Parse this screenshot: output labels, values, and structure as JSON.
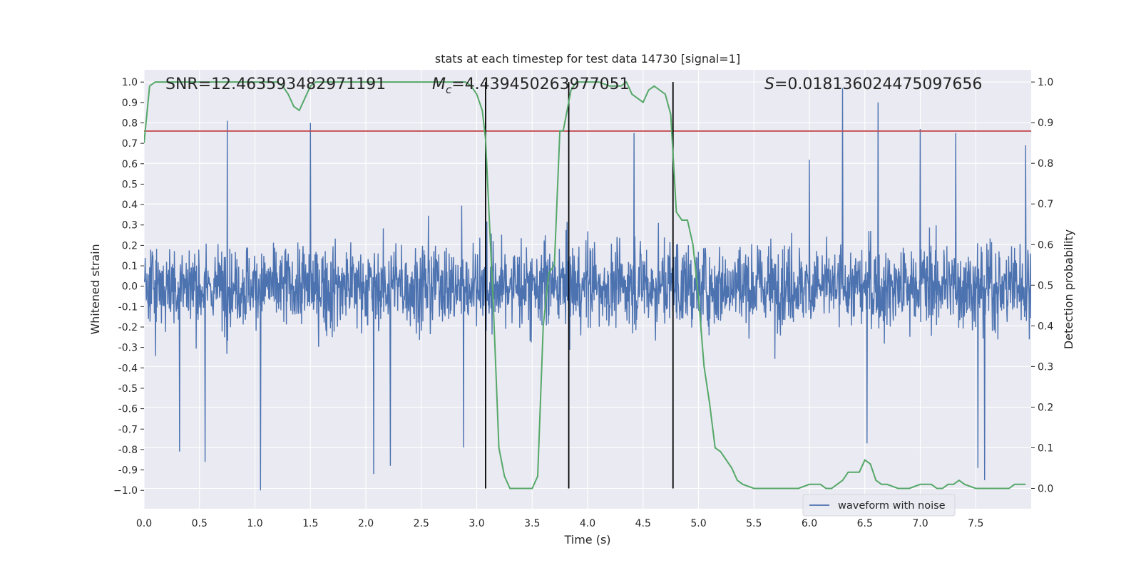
{
  "chart_data": {
    "type": "line",
    "title": "stats at each timestep for test data 14730 [signal=1]",
    "xlabel": "Time (s)",
    "ylabel_left": "Whitened strain",
    "ylabel_right": "Detection probability",
    "xlim": [
      0.0,
      8.0
    ],
    "ylim_left": [
      -1.09,
      1.06
    ],
    "ylim_right": [
      -0.05,
      1.03
    ],
    "x_ticks": [
      "0.0",
      "0.5",
      "1.0",
      "1.5",
      "2.0",
      "2.5",
      "3.0",
      "3.5",
      "4.0",
      "4.5",
      "5.0",
      "5.5",
      "6.0",
      "6.5",
      "7.0",
      "7.5"
    ],
    "x_tick_values": [
      0.0,
      0.5,
      1.0,
      1.5,
      2.0,
      2.5,
      3.0,
      3.5,
      4.0,
      4.5,
      5.0,
      5.5,
      6.0,
      6.5,
      7.0,
      7.5
    ],
    "y_left_ticks": [
      "1.0",
      "0.9",
      "0.8",
      "0.7",
      "0.6",
      "0.5",
      "0.4",
      "0.3",
      "0.2",
      "0.1",
      "0.0",
      "-0.1",
      "-0.2",
      "-0.3",
      "-0.4",
      "-0.5",
      "-0.6",
      "-0.7",
      "-0.8",
      "-0.9",
      "−1.0"
    ],
    "y_left_tick_values": [
      1.0,
      0.9,
      0.8,
      0.7,
      0.6,
      0.5,
      0.4,
      0.3,
      0.2,
      0.1,
      0.0,
      -0.1,
      -0.2,
      -0.3,
      -0.4,
      -0.5,
      -0.6,
      -0.7,
      -0.8,
      -0.9,
      -1.0
    ],
    "y_right_ticks": [
      "1.0",
      "0.9",
      "0.8",
      "0.7",
      "0.6",
      "0.5",
      "0.4",
      "0.3",
      "0.2",
      "0.1",
      "0.0"
    ],
    "y_right_tick_values": [
      1.0,
      0.9,
      0.8,
      0.7,
      0.6,
      0.5,
      0.4,
      0.3,
      0.2,
      0.1,
      0.0
    ],
    "grid": true,
    "legend_position": "lower-right",
    "annotations": {
      "snr": "SNR=12.463593482971191",
      "mc_symbol": "M",
      "mc_sub": "c",
      "mc_value": "=4.439450263977051",
      "s_symbol": "S",
      "s_value": "=0.018136024475097656"
    },
    "colors": {
      "waveform": "#4c72b0",
      "probability": "#55a868",
      "threshold": "#c44e52",
      "markers": "#000000",
      "plot_bg": "#eaeaf2",
      "grid": "#ffffff"
    },
    "series": [
      {
        "name": "waveform with noise",
        "axis": "left",
        "kind": "noise",
        "approx_envelope": [
          -0.45,
          0.45
        ],
        "sample_spikes": [
          [
            0.75,
            0.81
          ],
          [
            1.5,
            0.8
          ],
          [
            1.05,
            -1.0
          ],
          [
            0.55,
            -0.86
          ],
          [
            0.32,
            -0.81
          ],
          [
            2.07,
            -0.92
          ],
          [
            2.22,
            -0.88
          ],
          [
            2.88,
            -0.79
          ],
          [
            4.42,
            0.75
          ],
          [
            6.3,
            0.97
          ],
          [
            6.62,
            0.9
          ],
          [
            7.0,
            0.77
          ],
          [
            7.32,
            0.75
          ],
          [
            7.58,
            -0.95
          ],
          [
            7.52,
            -0.89
          ],
          [
            6.52,
            -0.77
          ],
          [
            6.0,
            0.62
          ],
          [
            7.95,
            0.69
          ]
        ]
      },
      {
        "name": "",
        "axis": "right",
        "kind": "probability",
        "x": [
          0.0,
          0.05,
          0.1,
          0.15,
          0.2,
          0.3,
          0.4,
          0.5,
          0.6,
          0.7,
          0.8,
          0.9,
          1.0,
          1.1,
          1.2,
          1.25,
          1.3,
          1.35,
          1.4,
          1.45,
          1.5,
          1.55,
          1.6,
          1.7,
          1.8,
          1.9,
          2.0,
          2.1,
          2.2,
          2.3,
          2.4,
          2.5,
          2.6,
          2.7,
          2.8,
          2.9,
          2.95,
          3.0,
          3.05,
          3.08,
          3.15,
          3.2,
          3.25,
          3.3,
          3.4,
          3.5,
          3.55,
          3.6,
          3.65,
          3.7,
          3.75,
          3.78,
          3.85,
          3.9,
          4.0,
          4.1,
          4.2,
          4.3,
          4.35,
          4.4,
          4.45,
          4.5,
          4.55,
          4.6,
          4.65,
          4.7,
          4.75,
          4.8,
          4.85,
          4.9,
          4.95,
          5.0,
          5.05,
          5.1,
          5.15,
          5.2,
          5.25,
          5.3,
          5.35,
          5.4,
          5.5,
          5.6,
          5.7,
          5.8,
          5.9,
          6.0,
          6.05,
          6.1,
          6.15,
          6.2,
          6.25,
          6.3,
          6.35,
          6.45,
          6.5,
          6.55,
          6.6,
          6.65,
          6.7,
          6.8,
          6.85,
          6.9,
          7.0,
          7.05,
          7.1,
          7.15,
          7.2,
          7.25,
          7.3,
          7.35,
          7.4,
          7.5,
          7.6,
          7.7,
          7.8,
          7.85,
          7.9,
          7.95
        ],
        "values": [
          0.85,
          0.99,
          1.0,
          1.0,
          1.0,
          1.0,
          1.0,
          1.0,
          1.0,
          1.0,
          1.0,
          1.0,
          1.0,
          1.0,
          1.0,
          0.99,
          0.97,
          0.94,
          0.93,
          0.96,
          0.99,
          1.0,
          1.0,
          1.0,
          1.0,
          1.0,
          1.0,
          1.0,
          1.0,
          1.0,
          1.0,
          1.0,
          1.0,
          1.0,
          1.0,
          1.0,
          0.99,
          0.97,
          0.93,
          0.86,
          0.45,
          0.1,
          0.03,
          0.0,
          0.0,
          0.0,
          0.03,
          0.4,
          0.53,
          0.55,
          0.88,
          0.88,
          0.98,
          1.0,
          1.0,
          1.0,
          0.99,
          0.99,
          1.0,
          0.97,
          0.96,
          0.95,
          0.98,
          0.99,
          0.98,
          0.97,
          0.92,
          0.68,
          0.66,
          0.66,
          0.6,
          0.47,
          0.3,
          0.21,
          0.1,
          0.09,
          0.07,
          0.05,
          0.02,
          0.01,
          0.0,
          0.0,
          0.0,
          0.0,
          0.0,
          0.01,
          0.01,
          0.01,
          0.0,
          0.0,
          0.01,
          0.02,
          0.04,
          0.04,
          0.07,
          0.06,
          0.02,
          0.01,
          0.01,
          0.0,
          0.0,
          0.0,
          0.01,
          0.01,
          0.01,
          0.0,
          0.0,
          0.01,
          0.01,
          0.02,
          0.01,
          0.0,
          0.0,
          0.0,
          0.0,
          0.01,
          0.01,
          0.01
        ]
      },
      {
        "name": "",
        "axis": "left",
        "kind": "threshold",
        "y": 0.76
      }
    ],
    "vertical_markers_x": [
      3.08,
      3.83,
      4.77
    ]
  }
}
